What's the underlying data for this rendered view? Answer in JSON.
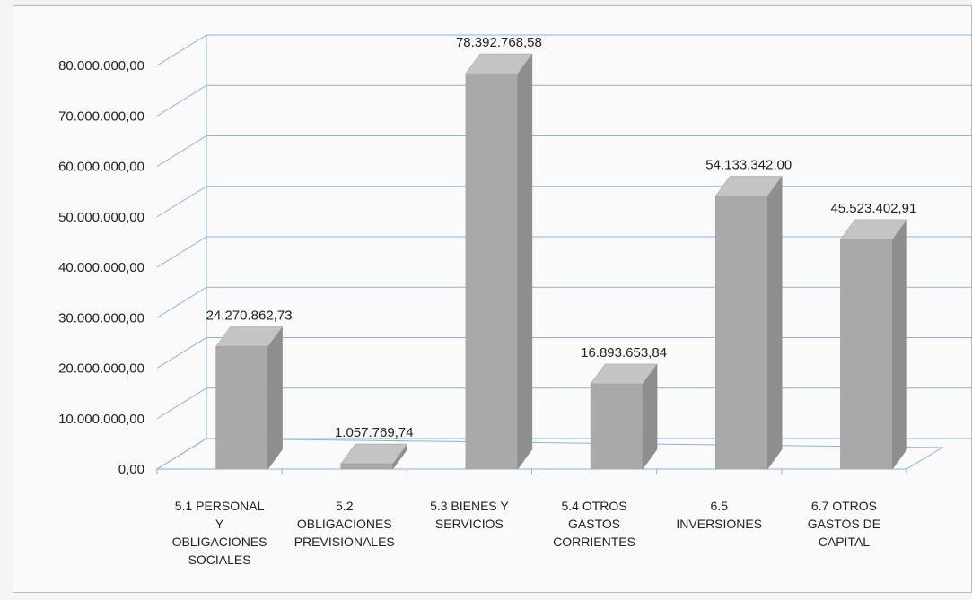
{
  "chart_data": {
    "type": "bar",
    "style": "3d-column",
    "categories": [
      [
        "5.1 PERSONAL",
        "Y",
        "OBLIGACIONES",
        "SOCIALES"
      ],
      [
        "5.2",
        "OBLIGACIONES",
        "PREVISIONALES"
      ],
      [
        "5.3 BIENES Y",
        "SERVICIOS"
      ],
      [
        "5.4 OTROS",
        "GASTOS",
        "CORRIENTES"
      ],
      [
        "6.5",
        "INVERSIONES"
      ],
      [
        "6.7 OTROS",
        "GASTOS DE",
        "CAPITAL"
      ]
    ],
    "values": [
      24270862.73,
      1057769.74,
      78392768.58,
      16893653.84,
      54133342.0,
      45523402.91
    ],
    "data_labels": [
      "24.270.862,73",
      "1.057.769,74",
      "78.392.768,58",
      "16.893.653,84",
      "54.133.342,00",
      "45.523.402,91"
    ],
    "ylim": [
      0,
      80000000
    ],
    "yticks": [
      0,
      10000000,
      20000000,
      30000000,
      40000000,
      50000000,
      60000000,
      70000000,
      80000000
    ],
    "ytick_labels": [
      "0,00",
      "10.000.000,00",
      "20.000.000,00",
      "30.000.000,00",
      "40.000.000,00",
      "50.000.000,00",
      "60.000.000,00",
      "70.000.000,00",
      "80.000.000,00"
    ],
    "grid": true,
    "legend": "none",
    "colors": {
      "bar_front": "#a9a9a9",
      "bar_side": "#8e8e8e",
      "bar_top": "#c4c4c4",
      "grid": "#8cb0d8",
      "axis": "#8cb0d8"
    }
  }
}
